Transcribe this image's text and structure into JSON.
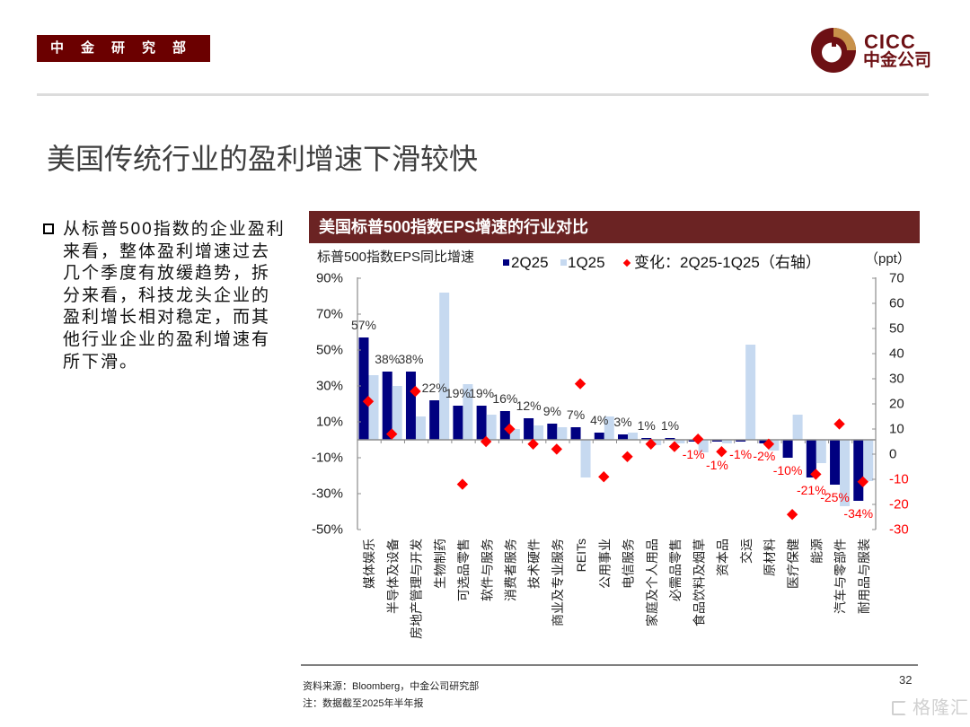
{
  "header": {
    "department": "中金研究部",
    "logo_en": "CICC",
    "logo_cn": "中金公司"
  },
  "page": {
    "title": "美国传统行业的盈利增速下滑较快",
    "number": "32"
  },
  "bullet": {
    "icon": "hollow-square-bullet",
    "lines": [
      "从标普500指数的企业盈利",
      "来看，整体盈利增速过去",
      "几个季度有放缓趋势，拆",
      "分来看，科技龙头企业的",
      "盈利增长相对稳定，而其",
      "他行业企业的盈利增速有",
      "所下滑。"
    ]
  },
  "chart_panel": {
    "title": "美国标普500指数EPS增速的行业对比"
  },
  "chart_data": {
    "type": "bar",
    "title": "美国标普500指数EPS增速的行业对比",
    "ylabel": "标普500指数EPS同比增速",
    "y2label": "（ppt）",
    "xlabel": "",
    "categories": [
      "媒体娱乐",
      "半导体及设备",
      "房地产管理与开发",
      "生物制药",
      "可选品零售",
      "软件与服务",
      "消费者服务",
      "技术硬件",
      "商业及专业服务",
      "REITs",
      "公用事业",
      "电信服务",
      "家庭及个人用品",
      "必需品零售",
      "食品饮料及烟草",
      "资本品",
      "交运",
      "原材料",
      "医疗保健",
      "能源",
      "汽车与零部件",
      "耐用品与服装"
    ],
    "series": [
      {
        "name": "2Q25",
        "kind": "bar",
        "axis": "left",
        "unit": "%",
        "color": "#000080",
        "values": [
          57,
          38,
          38,
          22,
          19,
          19,
          16,
          12,
          9,
          7,
          4,
          3,
          1,
          1,
          -1,
          -1,
          -1,
          -2,
          -10,
          -21,
          -25,
          -34
        ]
      },
      {
        "name": "1Q25",
        "kind": "bar",
        "axis": "left",
        "unit": "%",
        "color": "#c6d9f0",
        "values": [
          36,
          30,
          13,
          82,
          31,
          14,
          6,
          8,
          7,
          -21,
          13,
          4,
          -3,
          -2,
          -7,
          -2,
          53,
          -6,
          14,
          -13,
          -37,
          -23
        ]
      },
      {
        "name": "变化：2Q25-1Q25（右轴）",
        "kind": "scatter",
        "marker": "diamond",
        "axis": "right",
        "unit": "ppt",
        "color": "#ff0000",
        "values": [
          21,
          8,
          25,
          null,
          -12,
          5,
          10,
          4,
          2,
          28,
          -9,
          -1,
          4,
          3,
          6,
          1,
          null,
          4,
          -24,
          -8,
          12,
          -11
        ]
      }
    ],
    "data_labels": {
      "series_index": 0,
      "suffix": "%",
      "positive_color": "#333333",
      "negative_color": "#ff0000"
    },
    "ylim": [
      -50,
      90
    ],
    "y2lim": [
      -30,
      70
    ],
    "yticks": [
      "90%",
      "70%",
      "50%",
      "30%",
      "10%",
      "-10%",
      "-30%",
      "-50%"
    ],
    "y2ticks": [
      "70",
      "60",
      "50",
      "40",
      "30",
      "20",
      "10",
      "0",
      "-10",
      "-20",
      "-30"
    ],
    "y2_negative_tick_color": "#ff0000",
    "grid": false,
    "legend": "top"
  },
  "footer": {
    "source": "资料来源：Bloomberg，中金公司研究部",
    "note": "注：数据截至2025年半年报",
    "watermark": "格隆汇"
  }
}
